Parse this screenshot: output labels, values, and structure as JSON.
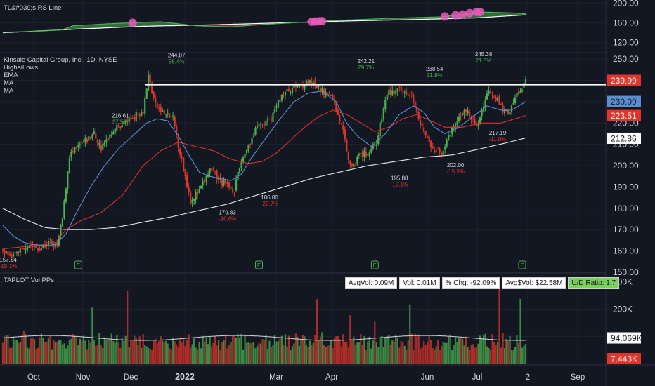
{
  "panes": {
    "rs_label": "TL&#039;s RS Line",
    "symbol_label": "Kinsale Capital Group, Inc., 1D, NYSE",
    "indicator_labels": [
      "Highs/Lows",
      "EMA",
      "MA",
      "MA"
    ],
    "volume_label": "TAPLOT Vol PPs"
  },
  "stats": {
    "avg_vol": "AvgVol: 0.09M",
    "vol": "Vol: 0.01M",
    "pct_chg": "% Chg: -92.09%",
    "avg_dollar_vol": "Avg$Vol: $22.58M",
    "ud_ratio": "U/D Ratio: 1.7"
  },
  "colors": {
    "background": "#131722",
    "up": "#4caf50",
    "down": "#e0352b",
    "ema": "#5b8fd0",
    "ma50": "#d9302a",
    "ma200": "#e8e8e8",
    "rs_line": "#4caf50",
    "rs_highlight": "#e85ab8"
  },
  "chart_data": {
    "type": "candlestick",
    "x_ticks": [
      "Oct",
      "Nov",
      "Dec",
      "2022",
      "Mar",
      "Apr",
      "Jun",
      "Jul",
      "2",
      "Sep"
    ],
    "rs_axis": {
      "ticks": [
        "200.00",
        "160.00",
        "120.00"
      ],
      "range": [
        104,
        206
      ]
    },
    "price_axis": {
      "ticks": [
        "250.00",
        "240.00",
        "230.00",
        "220.00",
        "210.00",
        "200.00",
        "190.00",
        "180.00",
        "170.00",
        "160.00",
        "150.00"
      ],
      "range": [
        150,
        252
      ]
    },
    "volume_axis": {
      "ticks": [
        "300K",
        "200K",
        "100K"
      ],
      "range": [
        0,
        330000
      ]
    },
    "price_badges": [
      {
        "text": "239.99",
        "value": 239.99,
        "bg": "#e0352b",
        "fg": "#ffffff"
      },
      {
        "text": "230.09",
        "value": 230.09,
        "bg": "#5b8fd0",
        "fg": "#131722"
      },
      {
        "text": "223.51",
        "value": 223.51,
        "bg": "#e0352b",
        "fg": "#ffffff"
      },
      {
        "text": "212.86",
        "value": 212.86,
        "bg": "#ffffff",
        "fg": "#131722"
      }
    ],
    "volume_badges": [
      {
        "text": "94.069K",
        "value": 94069,
        "bg": "#ffffff",
        "fg": "#131722"
      },
      {
        "text": "7.443K",
        "value": 7443,
        "bg": "#e0352b",
        "fg": "#ffffff"
      }
    ],
    "resistance_line": 238,
    "earnings_markers": [
      "E",
      "E",
      "E",
      "E"
    ],
    "highs_lows": [
      {
        "price": "157.54",
        "pct": "-15.1%",
        "type": "low"
      },
      {
        "price": "216.61",
        "pct": "37.5%",
        "type": "high"
      },
      {
        "price": "244.87",
        "pct": "55.4%",
        "type": "high"
      },
      {
        "price": "179.83",
        "pct": "-26.6%",
        "type": "low"
      },
      {
        "price": "186.80",
        "pct": "-23.7%",
        "type": "low"
      },
      {
        "price": "242.21",
        "pct": "29.7%",
        "type": "high"
      },
      {
        "price": "195.88",
        "pct": "-19.1%",
        "type": "low"
      },
      {
        "price": "238.54",
        "pct": "21.8%",
        "type": "high"
      },
      {
        "price": "202.00",
        "pct": "-15.3%",
        "type": "low"
      },
      {
        "price": "245.38",
        "pct": "21.5%",
        "type": "high"
      },
      {
        "price": "217.19",
        "pct": "-11.0%",
        "type": "low"
      }
    ],
    "close_path": [
      [
        0,
        160
      ],
      [
        6,
        158
      ],
      [
        14,
        163
      ],
      [
        20,
        161
      ],
      [
        26,
        163.5
      ],
      [
        31,
        162
      ],
      [
        34,
        175
      ],
      [
        38,
        205
      ],
      [
        45,
        210
      ],
      [
        52,
        215
      ],
      [
        56,
        208
      ],
      [
        63,
        217
      ],
      [
        71,
        221
      ],
      [
        80,
        226
      ],
      [
        83,
        242
      ],
      [
        87,
        228
      ],
      [
        91,
        225
      ],
      [
        97,
        222
      ],
      [
        101,
        206
      ],
      [
        107,
        184
      ],
      [
        112,
        188
      ],
      [
        118,
        198
      ],
      [
        125,
        192
      ],
      [
        132,
        189
      ],
      [
        136,
        202
      ],
      [
        139,
        208
      ],
      [
        145,
        218
      ],
      [
        152,
        221
      ],
      [
        159,
        233
      ],
      [
        166,
        237
      ],
      [
        174,
        239
      ],
      [
        180,
        236
      ],
      [
        188,
        232
      ],
      [
        194,
        216
      ],
      [
        198,
        200
      ],
      [
        204,
        205
      ],
      [
        208,
        206
      ],
      [
        213,
        211
      ],
      [
        219,
        234
      ],
      [
        226,
        235
      ],
      [
        233,
        234
      ],
      [
        239,
        218
      ],
      [
        245,
        207
      ],
      [
        250,
        206
      ],
      [
        256,
        216
      ],
      [
        263,
        227
      ],
      [
        270,
        218
      ],
      [
        277,
        236
      ],
      [
        281,
        232
      ],
      [
        286,
        225
      ],
      [
        289,
        226
      ],
      [
        291,
        229
      ],
      [
        293,
        234
      ],
      [
        296,
        235
      ],
      [
        298,
        240
      ]
    ],
    "ema_path": [
      [
        0,
        172
      ],
      [
        6,
        167
      ],
      [
        12,
        164
      ],
      [
        18,
        163
      ],
      [
        24,
        162.5
      ],
      [
        30,
        163
      ],
      [
        36,
        168
      ],
      [
        42,
        178
      ],
      [
        50,
        190
      ],
      [
        58,
        200
      ],
      [
        66,
        208
      ],
      [
        74,
        214
      ],
      [
        82,
        220
      ],
      [
        88,
        222
      ],
      [
        94,
        221
      ],
      [
        100,
        214
      ],
      [
        106,
        205
      ],
      [
        112,
        197
      ],
      [
        118,
        195
      ],
      [
        124,
        194
      ],
      [
        130,
        193
      ],
      [
        136,
        196
      ],
      [
        142,
        204
      ],
      [
        150,
        213
      ],
      [
        158,
        222
      ],
      [
        166,
        230
      ],
      [
        174,
        234
      ],
      [
        182,
        235
      ],
      [
        190,
        230
      ],
      [
        196,
        220
      ],
      [
        202,
        214
      ],
      [
        210,
        209
      ],
      [
        218,
        215
      ],
      [
        226,
        224
      ],
      [
        234,
        228
      ],
      [
        240,
        225
      ],
      [
        246,
        218
      ],
      [
        252,
        215
      ],
      [
        260,
        218
      ],
      [
        268,
        223
      ],
      [
        276,
        228
      ],
      [
        284,
        226
      ],
      [
        290,
        226
      ],
      [
        298,
        230
      ]
    ],
    "ma50_path": [
      [
        0,
        161
      ],
      [
        12,
        162
      ],
      [
        24,
        163
      ],
      [
        30,
        164
      ],
      [
        36,
        170
      ],
      [
        44,
        174
      ],
      [
        56,
        178
      ],
      [
        68,
        186
      ],
      [
        80,
        200
      ],
      [
        90,
        207
      ],
      [
        100,
        211
      ],
      [
        110,
        209
      ],
      [
        120,
        207
      ],
      [
        130,
        203
      ],
      [
        140,
        201
      ],
      [
        148,
        202
      ],
      [
        156,
        206
      ],
      [
        164,
        212
      ],
      [
        172,
        218
      ],
      [
        180,
        223
      ],
      [
        188,
        226
      ],
      [
        196,
        224
      ],
      [
        204,
        220
      ],
      [
        212,
        216
      ],
      [
        220,
        218
      ],
      [
        228,
        222
      ],
      [
        236,
        224
      ],
      [
        244,
        221
      ],
      [
        252,
        218
      ],
      [
        262,
        218
      ],
      [
        272,
        220
      ],
      [
        284,
        220
      ],
      [
        298,
        223.5
      ]
    ],
    "ma200_path": [
      [
        0,
        180
      ],
      [
        12,
        175
      ],
      [
        24,
        171
      ],
      [
        30,
        170.5
      ],
      [
        36,
        170
      ],
      [
        50,
        170
      ],
      [
        64,
        171
      ],
      [
        80,
        173.5
      ],
      [
        96,
        176
      ],
      [
        112,
        179
      ],
      [
        128,
        182
      ],
      [
        144,
        186
      ],
      [
        160,
        190
      ],
      [
        176,
        194
      ],
      [
        192,
        197
      ],
      [
        208,
        200
      ],
      [
        224,
        202
      ],
      [
        240,
        204
      ],
      [
        256,
        205
      ],
      [
        270,
        207.5
      ],
      [
        286,
        210.5
      ],
      [
        298,
        213
      ]
    ],
    "rs_path": [
      [
        0,
        141
      ],
      [
        20,
        143
      ],
      [
        34,
        146
      ],
      [
        40,
        154
      ],
      [
        60,
        158
      ],
      [
        80,
        161
      ],
      [
        90,
        162
      ],
      [
        100,
        158
      ],
      [
        110,
        154
      ],
      [
        130,
        152
      ],
      [
        150,
        157
      ],
      [
        170,
        161
      ],
      [
        180,
        163
      ],
      [
        190,
        165
      ],
      [
        200,
        166
      ],
      [
        220,
        169
      ],
      [
        240,
        171
      ],
      [
        250,
        172
      ],
      [
        262,
        177
      ],
      [
        270,
        182
      ],
      [
        280,
        181
      ],
      [
        290,
        180
      ],
      [
        298,
        178
      ]
    ],
    "rs_ma_path": [
      [
        0,
        140
      ],
      [
        40,
        147
      ],
      [
        80,
        153
      ],
      [
        120,
        156
      ],
      [
        160,
        160
      ],
      [
        200,
        164
      ],
      [
        240,
        167
      ],
      [
        270,
        170
      ],
      [
        298,
        176
      ]
    ],
    "rs_highlights": [
      74,
      176,
      178,
      180,
      182,
      252,
      258,
      262,
      266,
      270,
      272
    ]
  }
}
